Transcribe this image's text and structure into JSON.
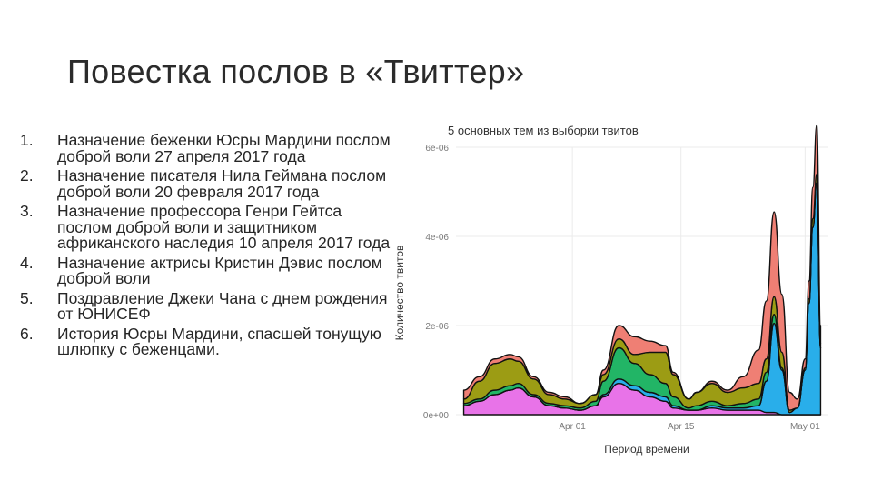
{
  "slide": {
    "title": "Повестка послов в «Твиттер»"
  },
  "agenda": [
    {
      "num": "1.",
      "text": "Назначение беженки Юсры Мардини послом доброй воли 27 апреля 2017 года"
    },
    {
      "num": "2.",
      "text": "Назначение писателя Нила Геймана послом доброй воли 20 февраля 2017 года"
    },
    {
      "num": "3.",
      "text": "Назначение профессора Генри Гейтса послом доброй воли и защитником африканского наследия 10 апреля 2017 года"
    },
    {
      "num": "4.",
      "text": "Назначение актрисы Кристин Дэвис послом доброй воли"
    },
    {
      "num": "5.",
      "text": "Поздравление Джеки Чана с днем рождения от ЮНИСЕФ"
    },
    {
      "num": "6.",
      "text": "История Юсры Мардини, спасшей тонущую шлюпку с беженцами."
    }
  ],
  "chart_data": {
    "type": "area",
    "stacked": true,
    "title": "5 основных тем из выборки твитов",
    "xlabel": "Период времени",
    "ylabel": "Количество твитов",
    "x_ticks": [
      "Apr 01",
      "Apr 15",
      "May 01"
    ],
    "y_ticks": [
      "0e+00",
      "2e-06",
      "4e-06",
      "6e-06"
    ],
    "ylim": [
      0,
      6e-06
    ],
    "grid": true,
    "x": [
      -14,
      -12,
      -10,
      -8,
      -7,
      -5,
      -3,
      -1,
      1,
      3,
      4,
      6,
      8,
      10,
      12,
      13,
      15,
      16,
      18,
      20,
      22,
      24,
      25,
      26,
      27,
      28,
      29,
      30,
      30.5,
      31,
      31.5,
      32
    ],
    "series": [
      {
        "color": "#ef7f74",
        "values": [
          2e-07,
          1e-07,
          1e-07,
          1e-07,
          1e-07,
          5e-08,
          5e-08,
          5e-08,
          0,
          0,
          1e-07,
          3e-07,
          4e-07,
          2.5e-07,
          1.5e-07,
          5e-08,
          0,
          0,
          5e-08,
          5e-08,
          2.5e-07,
          7.5e-07,
          1.3e-06,
          1.9e-06,
          1.3e-06,
          4e-07,
          2e-07,
          2e-07,
          4e-07,
          7e-07,
          1.1e-06,
          4e-07
        ]
      },
      {
        "color": "#9c9c14",
        "values": [
          1e-07,
          4e-07,
          6e-07,
          6e-07,
          5e-07,
          3.5e-07,
          2e-07,
          1.5e-07,
          1e-07,
          1.5e-07,
          1.5e-07,
          2e-07,
          2e-07,
          5e-07,
          7e-07,
          5e-07,
          2e-07,
          3e-07,
          4e-07,
          3e-07,
          3.5e-07,
          3.5e-07,
          3e-07,
          4e-07,
          3.5e-07,
          5e-08,
          0,
          5e-08,
          1e-07,
          2e-07,
          2e-07,
          1e-07
        ]
      },
      {
        "color": "#22b566",
        "values": [
          5e-08,
          5e-08,
          1e-07,
          1e-07,
          1e-07,
          5e-08,
          5e-08,
          5e-08,
          5e-08,
          1e-07,
          3e-07,
          7e-07,
          5e-07,
          4e-07,
          3e-07,
          2e-07,
          5e-08,
          1e-07,
          1e-07,
          5e-08,
          1e-07,
          1.5e-07,
          2e-07,
          2e-07,
          5e-08,
          0,
          0,
          0,
          0,
          0,
          0,
          0
        ]
      },
      {
        "color": "#29aeea",
        "values": [
          0,
          0,
          0,
          0,
          0,
          0,
          0,
          0,
          0,
          0,
          5e-08,
          1e-07,
          1e-07,
          1e-07,
          1e-07,
          5e-08,
          0,
          0,
          5e-08,
          5e-08,
          5e-08,
          1e-07,
          7e-07,
          2e-06,
          1e-06,
          5e-08,
          1.5e-07,
          1e-06,
          2.5e-06,
          4.2e-06,
          5.2e-06,
          1.5e-06
        ]
      },
      {
        "color": "#e873e8",
        "values": [
          2e-07,
          3e-07,
          4.5e-07,
          5.5e-07,
          6e-07,
          4e-07,
          2e-07,
          1.5e-07,
          1e-07,
          2e-07,
          4e-07,
          7e-07,
          5.5e-07,
          4e-07,
          3e-07,
          1.5e-07,
          1e-07,
          1e-07,
          1.5e-07,
          1e-07,
          1e-07,
          1e-07,
          5e-08,
          5e-08,
          0,
          0,
          0,
          0,
          0,
          0,
          0,
          0
        ]
      }
    ]
  }
}
